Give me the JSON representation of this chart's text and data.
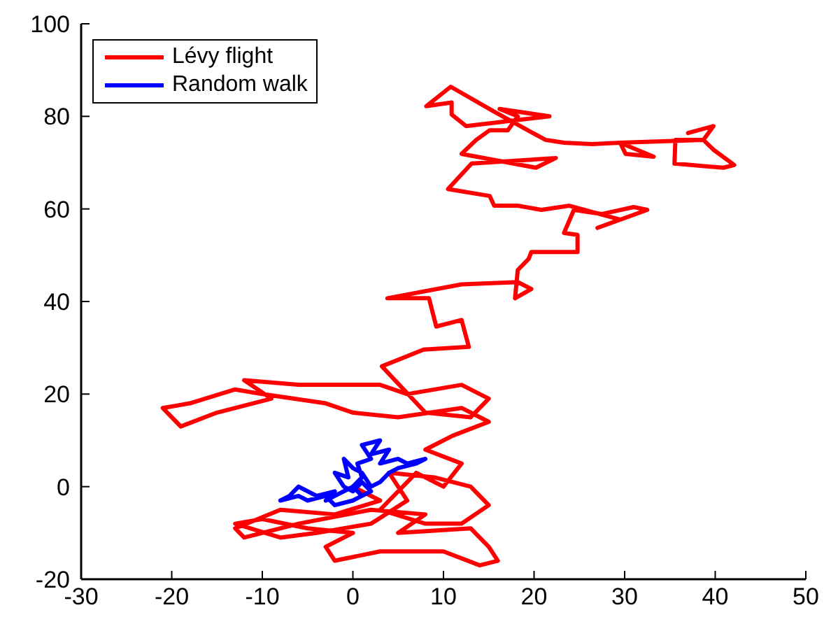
{
  "chart_data": {
    "type": "line",
    "xlim": [
      -30,
      50
    ],
    "xticks": [
      -30,
      -20,
      -10,
      0,
      10,
      20,
      30,
      40,
      50
    ],
    "ylim": [
      -20,
      100
    ],
    "yticks": [
      -20,
      0,
      20,
      40,
      60,
      80,
      100
    ],
    "legend": "top left",
    "marker": "none",
    "line_style": "solid",
    "series": [
      {
        "name": "Lévy flight",
        "color": "#ff0000",
        "x": [
          0,
          3,
          -2,
          -8,
          -13,
          -12,
          -6,
          2,
          8,
          5,
          13,
          15,
          16,
          14,
          10,
          3,
          -2,
          -3,
          0,
          -5,
          -10,
          -13,
          -8,
          -4,
          2,
          6,
          4,
          9,
          13,
          15,
          12,
          8,
          3,
          7,
          10,
          12,
          8,
          11,
          15,
          12,
          5,
          0,
          -3,
          -10,
          -13,
          -18,
          -21,
          -19,
          -15,
          -9,
          -12,
          -6,
          3,
          6,
          12,
          15,
          13,
          8,
          3.2,
          7.8,
          12.8,
          12,
          9.2,
          8.4,
          3.8,
          12,
          18.2,
          19.7,
          17.9,
          18.2,
          19.4,
          19.7,
          22.5,
          24.8,
          24.8,
          23.3,
          24.4,
          27.5,
          31,
          32.5,
          27,
          29.5,
          23.9,
          20.8,
          18.2,
          15.6,
          15.1,
          10.5,
          13.1,
          22.4,
          20.2,
          12,
          13.6,
          15.1,
          17.1,
          18.2,
          16.2,
          21.7,
          12.5,
          10.9,
          10.9,
          8.1,
          10.8,
          15.6,
          19.3,
          21.3,
          23.3,
          26.4,
          29.5,
          33.2,
          30.1,
          29.5,
          38.7,
          35.6,
          35.5,
          40.9,
          42.1,
          39.8,
          38.7,
          39.8,
          37
        ],
        "values": [
          0,
          -3,
          -6,
          -5,
          -9,
          -11,
          -8,
          -5,
          -6,
          -10,
          -9,
          -13,
          -16,
          -17,
          -14,
          -14,
          -16,
          -13,
          -10,
          -9,
          -7,
          -8,
          -11,
          -10,
          -8,
          -3,
          3,
          2,
          0,
          -4,
          -8,
          -8,
          -5,
          3,
          0,
          5,
          8,
          11,
          14,
          17,
          15,
          16,
          18,
          20,
          21,
          18,
          17,
          13,
          16,
          19,
          23,
          22,
          22,
          20,
          22,
          19,
          15,
          16,
          26,
          29.6,
          30.2,
          36,
          34.6,
          40.7,
          40.7,
          43.7,
          44.2,
          42.7,
          40.7,
          46.8,
          49.2,
          50.7,
          50.7,
          50.7,
          54.4,
          54.8,
          59.8,
          58.9,
          60.4,
          59.8,
          55.9,
          57.7,
          60.7,
          59.8,
          60.7,
          60.7,
          62.8,
          64.3,
          69.8,
          71,
          68.9,
          71.9,
          74.9,
          77,
          77,
          80,
          81.6,
          80,
          77.9,
          80.4,
          83,
          82.2,
          86.4,
          81,
          77,
          74.9,
          74.3,
          74,
          74.3,
          71.3,
          71.9,
          74.3,
          74.9,
          74.9,
          69.8,
          68.9,
          69.5,
          72.8,
          74.9,
          77.9,
          76.4
        ]
      },
      {
        "name": "Random walk",
        "color": "#0000ff",
        "x": [
          0,
          1,
          0.5,
          2,
          1,
          3,
          2,
          4,
          3,
          5,
          6,
          8,
          7,
          5,
          4,
          3,
          2,
          1,
          0,
          -1,
          -0.5,
          -2,
          -1,
          0,
          1,
          2,
          1,
          0,
          -1,
          -2,
          -3,
          -2,
          -4,
          -5,
          -6,
          -7,
          -8,
          -6,
          -5,
          -3,
          -2,
          0,
          1
        ],
        "values": [
          0,
          2,
          5,
          6,
          9,
          10,
          7,
          8,
          5,
          6,
          5,
          6,
          5,
          4,
          3,
          1,
          0,
          3,
          4,
          6,
          2,
          3,
          0,
          -1,
          1,
          -1,
          -2,
          0,
          -1,
          -2,
          -3,
          -1,
          -2,
          -1,
          0,
          -2,
          -3,
          -2,
          -3,
          -2,
          -4,
          -3,
          -2
        ]
      }
    ]
  }
}
